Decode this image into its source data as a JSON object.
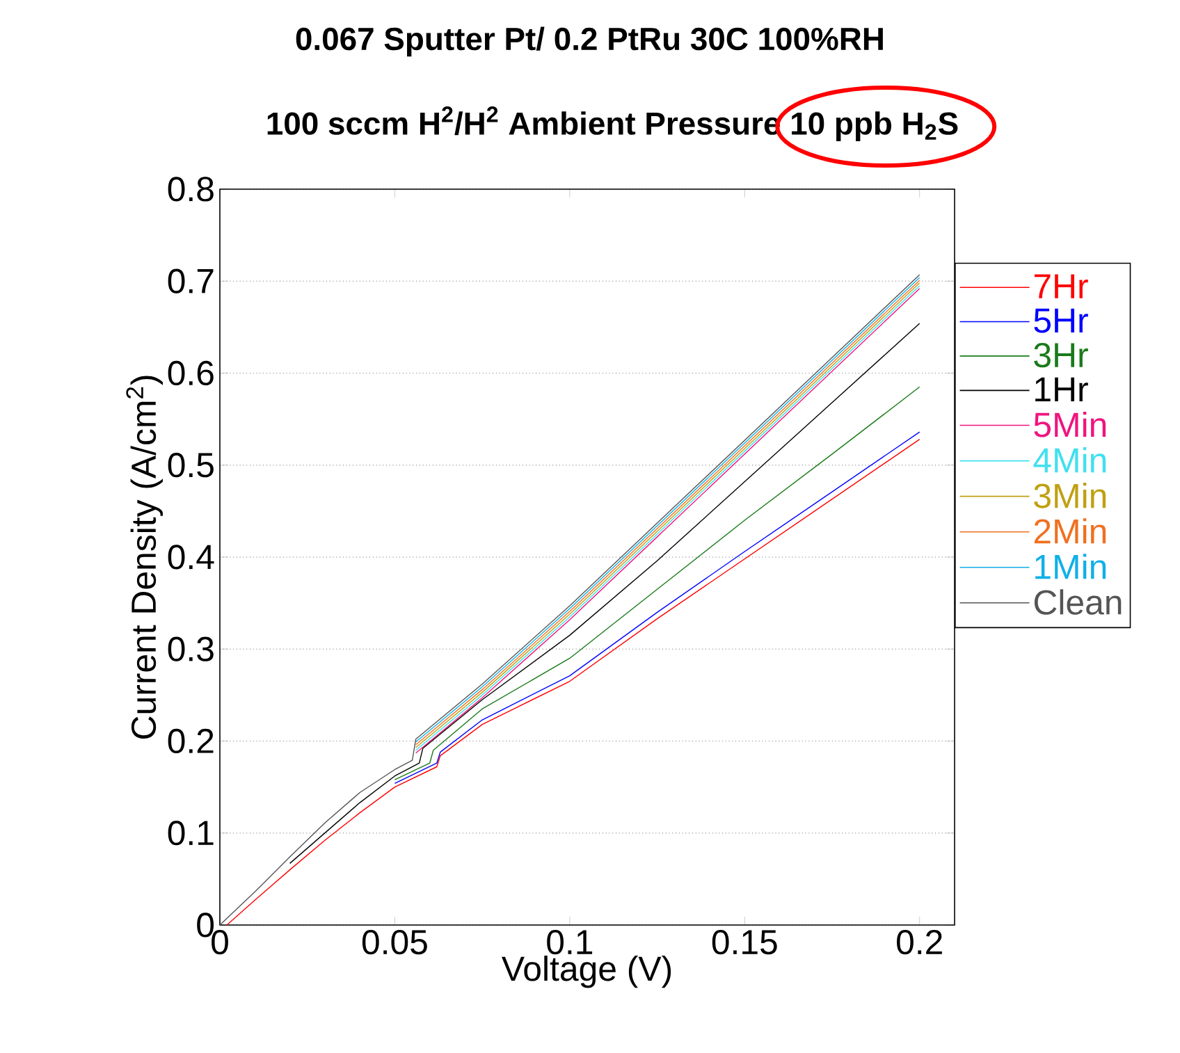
{
  "chart_data": {
    "type": "line",
    "title": "**0.067 Sputter Pt/ 0.2 PtRu 30C 100%RH**",
    "subtitle": "**100 sccm H$^{2}$/H$^{2}$ Ambient Pressure 10 ppb H$_{2}$S**",
    "xlabel": "Voltage (V)",
    "ylabel": "Current Density (A/cm$^{2}$)",
    "xlim": [
      0,
      0.21
    ],
    "ylim": [
      0,
      0.8
    ],
    "xticks": [
      0,
      0.05,
      0.1,
      0.15,
      0.2
    ],
    "yticks": [
      0,
      0.1,
      0.2,
      0.3,
      0.4,
      0.5,
      0.6,
      0.7,
      0.8
    ],
    "grid": "y",
    "legend": "right",
    "line_style": "solid",
    "marker": "none",
    "series": [
      {
        "name": "7Hr",
        "color": "#ff0000",
        "x": [
          0.002,
          0.01,
          0.02,
          0.03,
          0.04,
          0.05,
          0.062,
          0.063,
          0.075,
          0.1,
          0.125,
          0.15,
          0.175,
          0.2
        ],
        "values": [
          0,
          0.027,
          0.06,
          0.092,
          0.122,
          0.15,
          0.172,
          0.184,
          0.218,
          0.265,
          0.333,
          0.398,
          0.463,
          0.528
        ]
      },
      {
        "name": "5Hr",
        "color": "#0000ff",
        "x": [
          0.05,
          0.062,
          0.063,
          0.075,
          0.1,
          0.125,
          0.15,
          0.175,
          0.2
        ],
        "values": [
          0.154,
          0.176,
          0.188,
          0.223,
          0.271,
          0.34,
          0.406,
          0.471,
          0.536
        ]
      },
      {
        "name": "3Hr",
        "color": "#1a7a1a",
        "x": [
          0.05,
          0.06,
          0.061,
          0.075,
          0.1,
          0.125,
          0.15,
          0.175,
          0.2
        ],
        "values": [
          0.158,
          0.176,
          0.19,
          0.235,
          0.29,
          0.365,
          0.44,
          0.512,
          0.585
        ]
      },
      {
        "name": "1Hr",
        "color": "#000000",
        "x": [
          0.02,
          0.04,
          0.05,
          0.057,
          0.058,
          0.075,
          0.1,
          0.125,
          0.15,
          0.175,
          0.2
        ],
        "values": [
          0.067,
          0.133,
          0.162,
          0.176,
          0.192,
          0.245,
          0.315,
          0.396,
          0.482,
          0.568,
          0.654
        ]
      },
      {
        "name": "5Min",
        "color": "#f0147f",
        "x": [
          0.056,
          0.075,
          0.1,
          0.125,
          0.15,
          0.175,
          0.2
        ],
        "values": [
          0.187,
          0.247,
          0.332,
          0.422,
          0.512,
          0.602,
          0.692
        ]
      },
      {
        "name": "4Min",
        "color": "#40e0f0",
        "x": [
          0.056,
          0.075,
          0.1,
          0.125,
          0.15,
          0.175,
          0.2
        ],
        "values": [
          0.19,
          0.25,
          0.335,
          0.425,
          0.515,
          0.605,
          0.695
        ]
      },
      {
        "name": "3Min",
        "color": "#c0a010",
        "x": [
          0.056,
          0.075,
          0.1,
          0.125,
          0.15,
          0.175,
          0.2
        ],
        "values": [
          0.193,
          0.253,
          0.338,
          0.428,
          0.518,
          0.608,
          0.698
        ]
      },
      {
        "name": "2Min",
        "color": "#f07020",
        "x": [
          0.056,
          0.075,
          0.1,
          0.125,
          0.15,
          0.175,
          0.2
        ],
        "values": [
          0.196,
          0.256,
          0.341,
          0.431,
          0.521,
          0.611,
          0.701
        ]
      },
      {
        "name": "1Min",
        "color": "#10b0e8",
        "x": [
          0.056,
          0.075,
          0.1,
          0.125,
          0.15,
          0.175,
          0.2
        ],
        "values": [
          0.199,
          0.259,
          0.344,
          0.434,
          0.524,
          0.614,
          0.704
        ]
      },
      {
        "name": "Clean",
        "color": "#555555",
        "x": [
          0,
          0.01,
          0.02,
          0.03,
          0.04,
          0.05,
          0.055,
          0.056,
          0.075,
          0.1,
          0.125,
          0.15,
          0.175,
          0.2
        ],
        "values": [
          0,
          0.036,
          0.074,
          0.111,
          0.144,
          0.169,
          0.179,
          0.202,
          0.262,
          0.347,
          0.437,
          0.527,
          0.617,
          0.707
        ]
      }
    ]
  }
}
